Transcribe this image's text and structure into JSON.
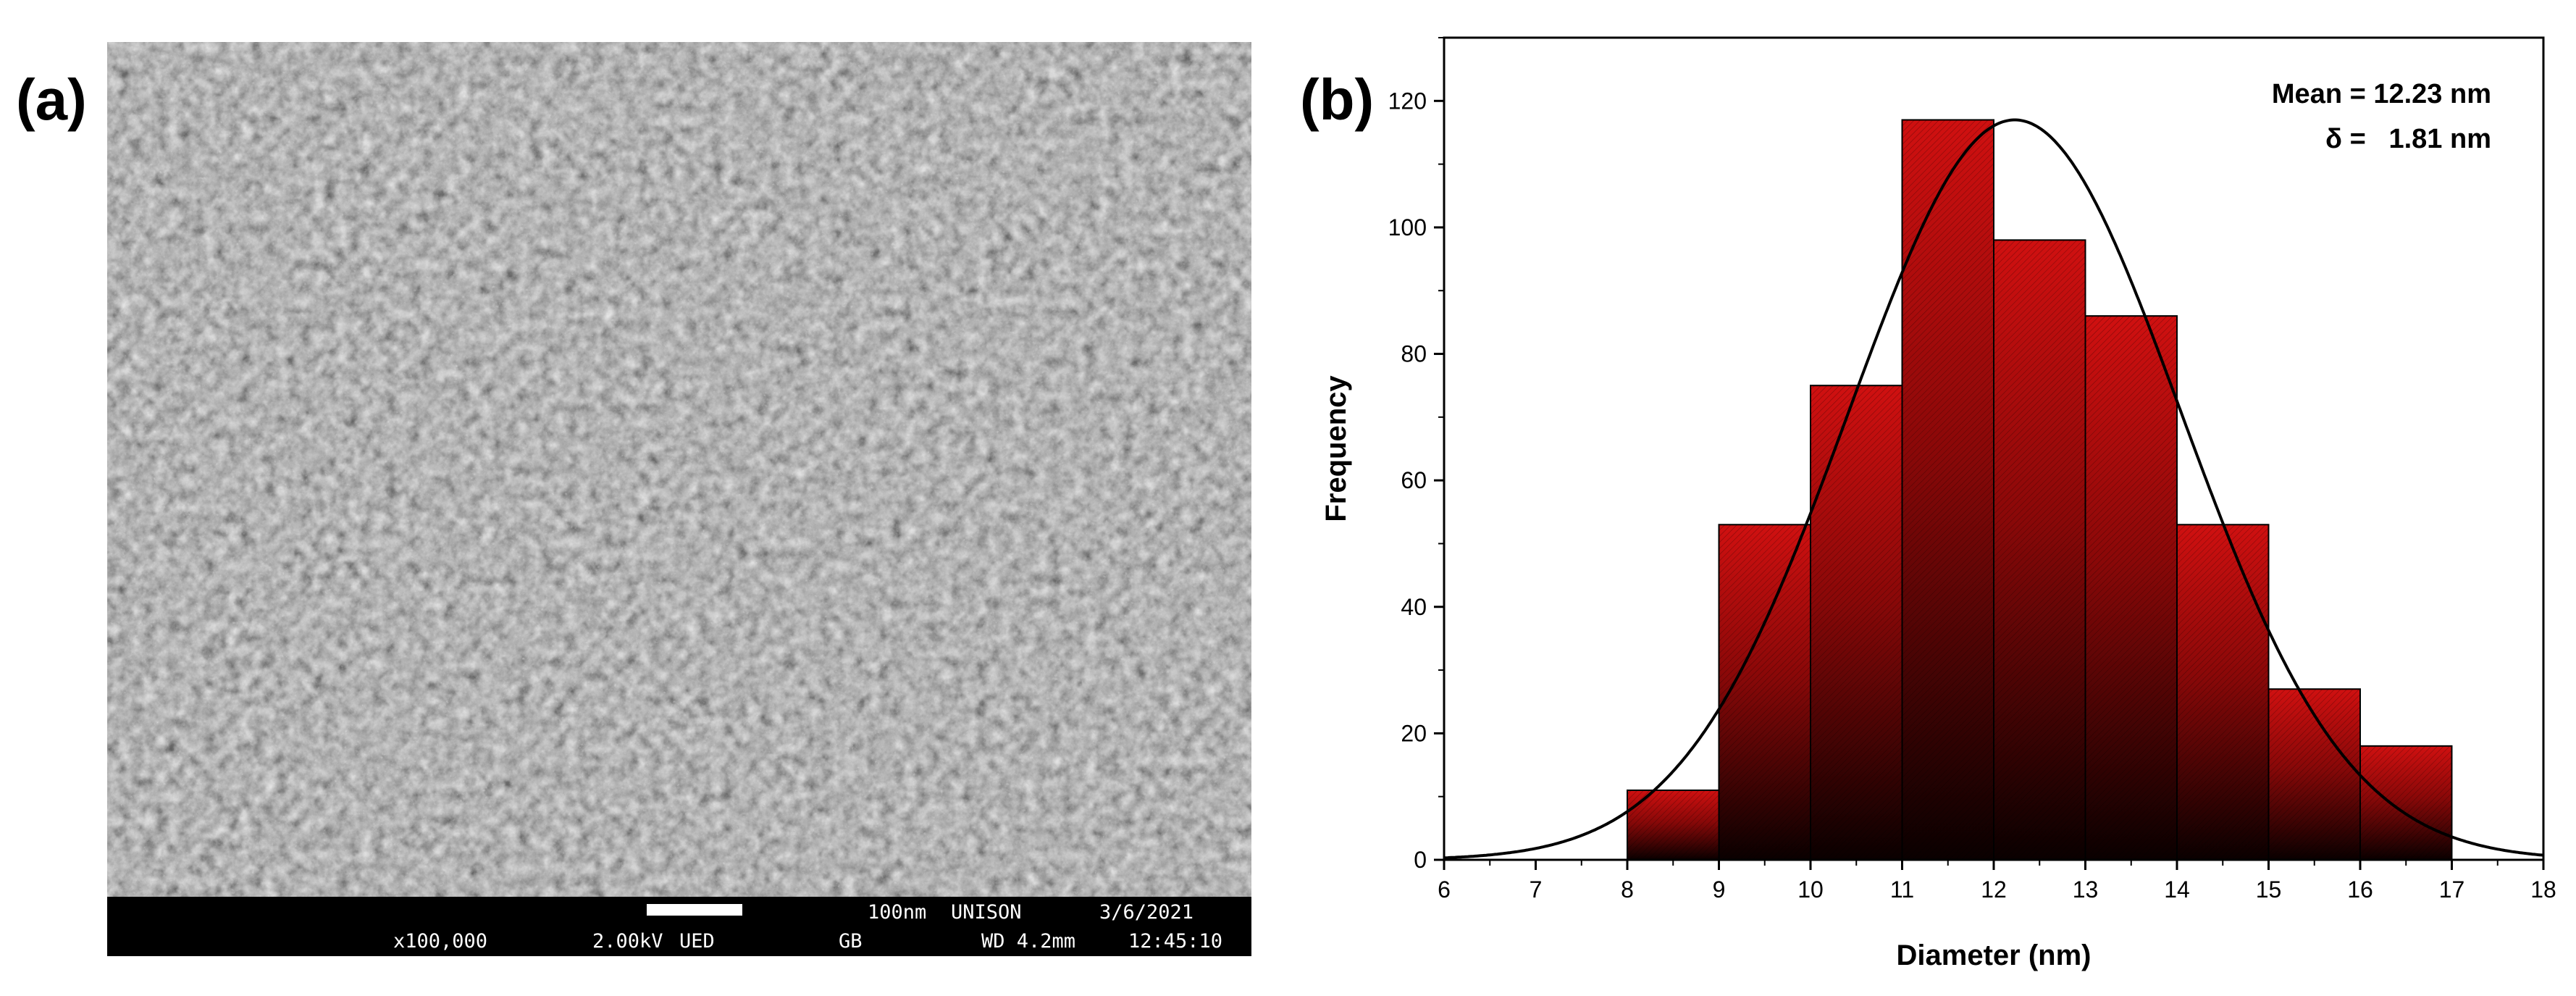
{
  "panels": {
    "a": "(a)",
    "b": "(b)"
  },
  "sem": {
    "scale_label": "100nm",
    "lab": "UNISON",
    "date": "3/6/2021",
    "magnification": "x100,000",
    "voltage": "2.00kV",
    "detector": "UED",
    "mode": "GB",
    "working_distance": "WD 4.2mm",
    "time": "12:45:10"
  },
  "colors": {
    "bar_top": "#d01010",
    "bar_bottom": "#0a0000",
    "curve": "#000000"
  },
  "chart_data": {
    "type": "bar",
    "xlabel": "Diameter (nm)",
    "ylabel": "Frequency",
    "xlim": [
      6,
      18
    ],
    "ylim": [
      0,
      130
    ],
    "x_ticks": [
      "6",
      "7",
      "8",
      "9",
      "10",
      "11",
      "12",
      "13",
      "14",
      "15",
      "16",
      "17",
      "18"
    ],
    "y_ticks": [
      "0",
      "20",
      "40",
      "60",
      "80",
      "100",
      "120"
    ],
    "bins": [
      [
        8,
        9
      ],
      [
        9,
        10
      ],
      [
        10,
        11
      ],
      [
        11,
        12
      ],
      [
        12,
        13
      ],
      [
        13,
        14
      ],
      [
        14,
        15
      ],
      [
        15,
        16
      ],
      [
        16,
        17
      ]
    ],
    "values": [
      11,
      53,
      75,
      117,
      98,
      86,
      53,
      27,
      18
    ],
    "fit": {
      "type": "gaussian",
      "mean": 12.23,
      "sigma": 1.81,
      "peak": 117
    },
    "annotations": [
      "Mean = 12.23 nm",
      "δ =   1.81 nm"
    ]
  }
}
